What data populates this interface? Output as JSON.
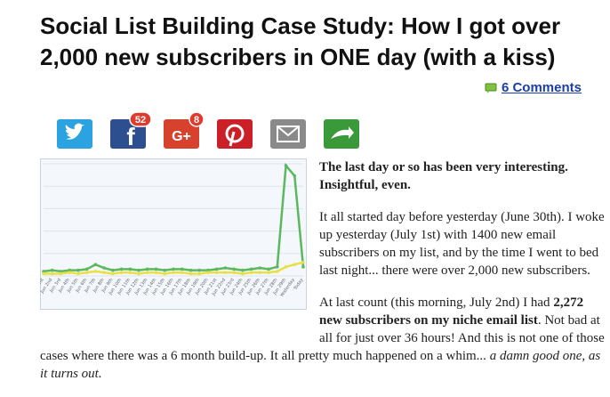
{
  "header": {
    "title": "Social List Building Case Study: How I got over 2,000 new subscribers in ONE day (with a kiss)"
  },
  "comments": {
    "label": "6 Comments"
  },
  "share": {
    "facebook_count": "52",
    "googleplus_count": "8"
  },
  "chart": {
    "categories": [
      "Jun 1st",
      "Jun 2nd",
      "Jun 3rd",
      "Jun 4th",
      "Jun 5th",
      "Jun 6th",
      "Jun 7th",
      "Jun 8th",
      "Jun 9th",
      "Jun 10th",
      "Jun 11th",
      "Jun 12th",
      "Jun 13th",
      "Jun 14th",
      "Jun 15th",
      "Jun 16th",
      "Jun 17th",
      "Jun 18th",
      "Jun 19th",
      "Jun 20th",
      "Jun 21st",
      "Jun 22nd",
      "Jun 23rd",
      "Jun 24th",
      "Jun 25th",
      "Jun 26th",
      "Jun 27th",
      "Jun 28th",
      "Jun 29th",
      "Yesterday",
      "Today"
    ],
    "series": [
      {
        "color": "#5cb85c",
        "values": [
          4,
          5,
          4,
          5,
          5,
          6,
          10,
          7,
          5,
          6,
          6,
          5,
          6,
          6,
          5,
          6,
          6,
          5,
          5,
          5,
          6,
          7,
          6,
          5,
          6,
          7,
          6,
          8,
          97,
          88,
          8
        ]
      },
      {
        "color": "#e8e04a",
        "values": [
          2,
          2,
          2,
          3,
          2,
          3,
          4,
          3,
          2,
          3,
          3,
          2,
          3,
          3,
          2,
          3,
          3,
          2,
          2,
          3,
          3,
          3,
          3,
          2,
          3,
          3,
          3,
          4,
          8,
          10,
          12
        ]
      }
    ]
  },
  "article": {
    "p1": "The last day or so has been very interesting. Insightful, even.",
    "p2": "It all started day before yesterday (June 30th). I woke up yesterday (July 1st) with 1400 new email subscribers on my list, and by the time I went to bed last night... there were over 2,000 new subscribers.",
    "p3": {
      "a": "At last count (this morning, July 2nd) I had ",
      "b": "2,272 new subscribers on my niche email list",
      "c": ". Not bad at all for just over 36 hours! And this is not one of those cases where there was a 6 month build-up. It all pretty much happened on a whim... ",
      "d": "a damn good one, as it turns out."
    }
  }
}
